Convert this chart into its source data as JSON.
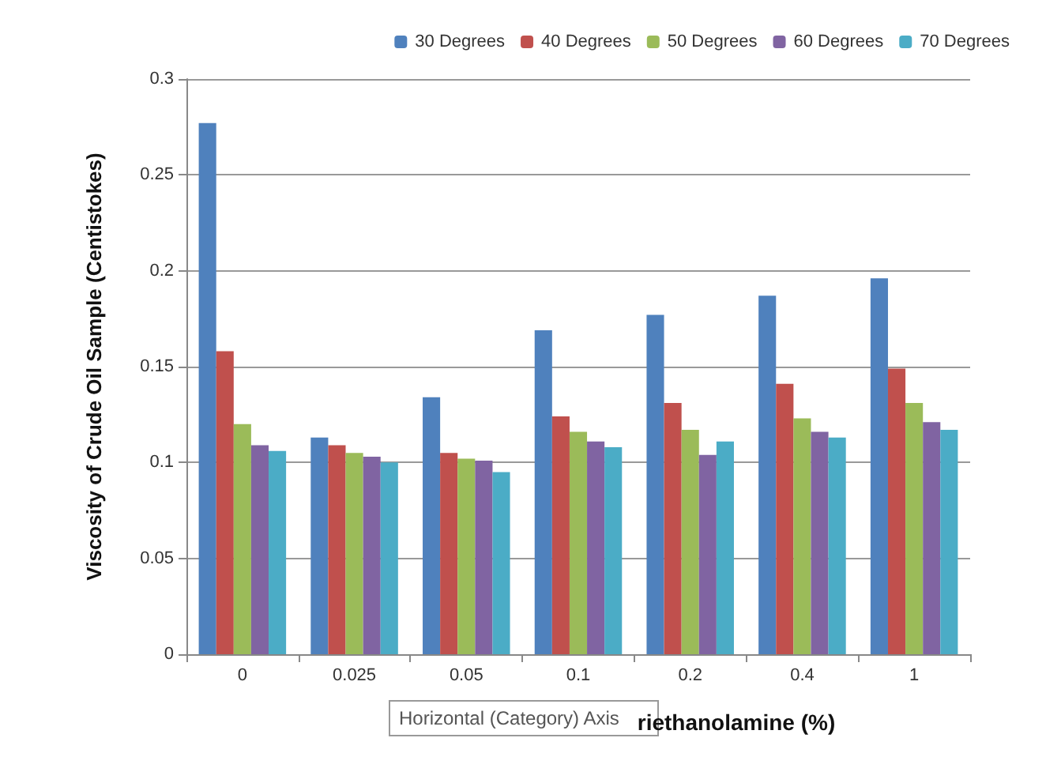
{
  "chart_data": {
    "type": "bar",
    "ylabel": "Viscosity of Crude Oil Sample (Centistokes)",
    "xlabel": "riethanolamine (%)",
    "annotations": [
      "Horizontal (Category) Axis"
    ],
    "categories": [
      "0",
      "0.025",
      "0.05",
      "0.1",
      "0.2",
      "0.4",
      "1"
    ],
    "series": [
      {
        "name": "30 Degrees",
        "color": "#4f81bd",
        "values": [
          0.277,
          0.113,
          0.134,
          0.169,
          0.177,
          0.187,
          0.196
        ]
      },
      {
        "name": "40 Degrees",
        "color": "#c0504d",
        "values": [
          0.158,
          0.109,
          0.105,
          0.124,
          0.131,
          0.141,
          0.149
        ]
      },
      {
        "name": "50 Degrees",
        "color": "#9bbb59",
        "values": [
          0.12,
          0.105,
          0.102,
          0.116,
          0.117,
          0.123,
          0.131
        ]
      },
      {
        "name": "60 Degrees",
        "color": "#8064a2",
        "values": [
          0.109,
          0.103,
          0.101,
          0.111,
          0.104,
          0.116,
          0.121
        ]
      },
      {
        "name": "70 Degrees",
        "color": "#4bacc6",
        "values": [
          0.106,
          0.1,
          0.095,
          0.108,
          0.111,
          0.113,
          0.117
        ]
      }
    ],
    "ylim": [
      0,
      0.3
    ],
    "yticks": [
      0,
      0.05,
      0.1,
      0.15,
      0.2,
      0.25,
      0.3
    ],
    "grid": "y",
    "legend": "top right"
  }
}
